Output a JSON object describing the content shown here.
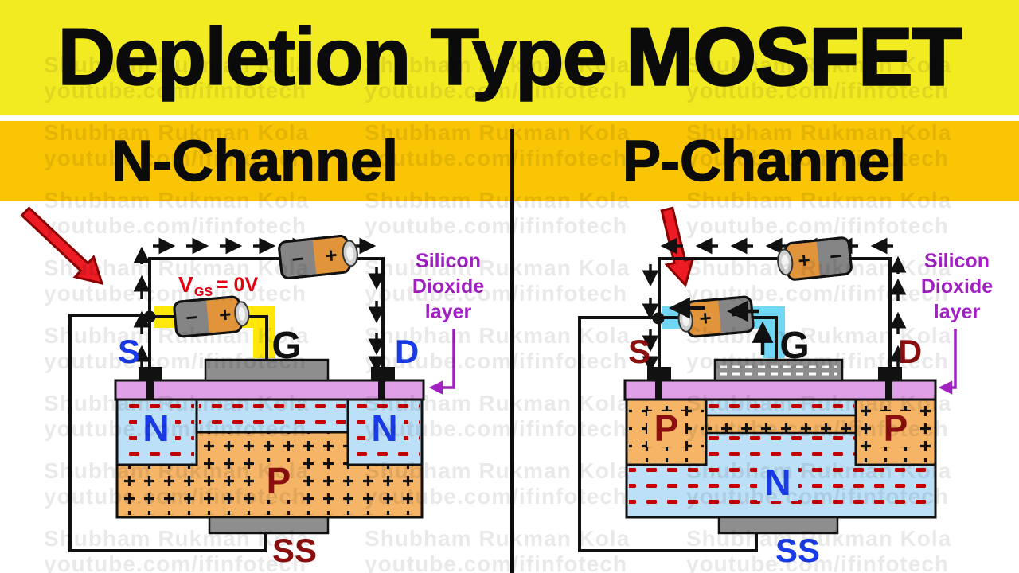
{
  "title": {
    "part1": "Depletion Type ",
    "part2": "MOSFET"
  },
  "watermark": {
    "line1": "Shubham Rukman Kola",
    "line2": "youtube.com/ifinfotech"
  },
  "battery": {
    "minus": "−",
    "plus": "+"
  },
  "oxide_label": {
    "l1": "Silicon",
    "l2": "Dioxide",
    "l3": "layer"
  },
  "panels": {
    "left": {
      "header": "N-Channel",
      "vgs": {
        "sym": "V",
        "sub": "GS",
        "val": "= 0V"
      },
      "terminals": {
        "source": "S",
        "gate": "G",
        "drain": "D",
        "substrate": "SS"
      },
      "regions": {
        "source": "N",
        "drain": "N",
        "body": "P"
      },
      "charges": {
        "n_regions": "−",
        "p_body": "+"
      },
      "flow_direction": "clockwise-right"
    },
    "right": {
      "header": "P-Channel",
      "terminals": {
        "source": "S",
        "gate": "G",
        "drain": "D",
        "substrate": "SS"
      },
      "regions": {
        "source": "P",
        "drain": "P",
        "body": "N"
      },
      "charges": {
        "p_regions": "+",
        "n_body": "−"
      },
      "flow_direction": "counter-clockwise-left"
    }
  },
  "colors": {
    "title_band": "#F3EB22",
    "channel_band": "#F9C505",
    "oxide": "#DF9FE6",
    "n_region": "#BCE0F7",
    "p_region": "#F6B566",
    "electrode_gray": "#8E8E8E",
    "blue_label": "#1A3BE8",
    "maroon_label": "#8C0F0F",
    "red_label": "#E8000F",
    "purple_label": "#A21FC4",
    "red_arrow": "#ED1B24",
    "yellow_highlight": "#FFE70A",
    "cyan_highlight": "#70D7F5",
    "minus_charge": "#C40000",
    "plus_charge": "#111111"
  }
}
